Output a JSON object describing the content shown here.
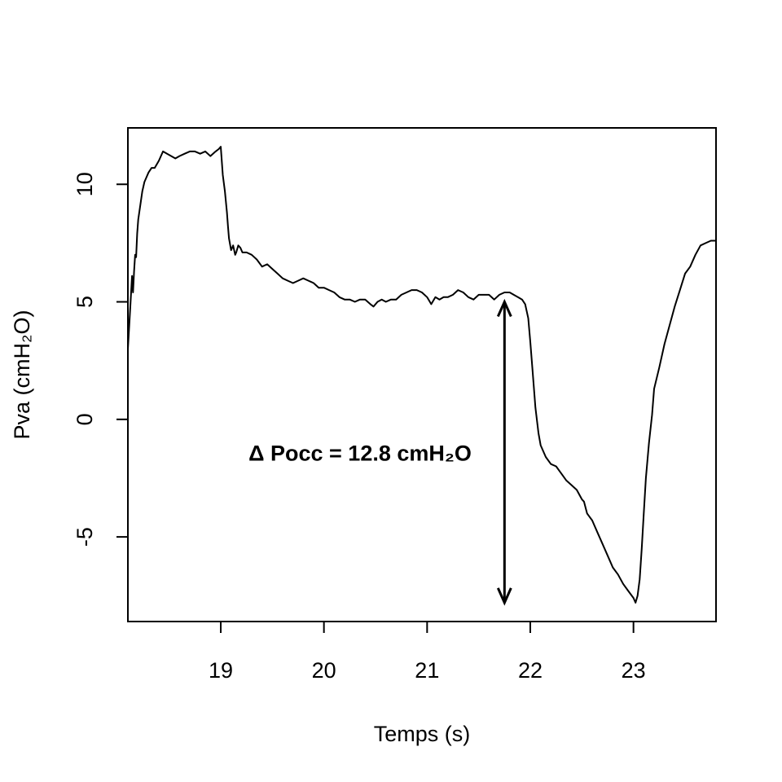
{
  "chart_data": {
    "type": "line",
    "title": "",
    "xlabel": "Temps (s)",
    "ylabel": "Pva (cmH₂O)",
    "xlim": [
      18.1,
      23.8
    ],
    "ylim": [
      -8.6,
      12.4
    ],
    "xticks": [
      19,
      20,
      21,
      22,
      23
    ],
    "xtick_labels": [
      "19",
      "20",
      "21",
      "22",
      "23"
    ],
    "yticks": [
      -5,
      0,
      5,
      10
    ],
    "ytick_labels": [
      "-5",
      "0",
      "5",
      "10"
    ],
    "grid": false,
    "legend": "none",
    "line_color": "#000000",
    "series": [
      {
        "x": [
          18.1,
          18.12,
          18.14,
          18.15,
          18.16,
          18.17,
          18.18,
          18.19,
          18.2,
          18.22,
          18.24,
          18.26,
          18.28,
          18.3,
          18.33,
          18.36,
          18.4,
          18.44,
          18.48,
          18.52,
          18.56,
          18.6,
          18.65,
          18.7,
          18.75,
          18.8,
          18.85,
          18.9,
          18.95,
          18.98,
          19.0,
          19.02,
          19.04,
          19.06,
          19.07,
          19.08,
          19.1,
          19.12,
          19.14,
          19.15,
          19.17,
          19.19,
          19.21,
          19.25,
          19.3,
          19.35,
          19.4,
          19.45,
          19.5,
          19.55,
          19.6,
          19.65,
          19.7,
          19.75,
          19.8,
          19.85,
          19.9,
          19.95,
          20.0,
          20.05,
          20.1,
          20.15,
          20.2,
          20.25,
          20.3,
          20.35,
          20.4,
          20.45,
          20.48,
          20.52,
          20.56,
          20.6,
          20.65,
          20.7,
          20.75,
          20.8,
          20.85,
          20.9,
          20.95,
          21.0,
          21.04,
          21.08,
          21.12,
          21.16,
          21.2,
          21.25,
          21.3,
          21.35,
          21.4,
          21.45,
          21.5,
          21.55,
          21.6,
          21.65,
          21.7,
          21.75,
          21.8,
          21.84,
          21.88,
          21.92,
          21.95,
          21.98,
          22.0,
          22.02,
          22.05,
          22.08,
          22.1,
          22.15,
          22.2,
          22.25,
          22.3,
          22.35,
          22.4,
          22.45,
          22.5,
          22.52,
          22.55,
          22.6,
          22.65,
          22.7,
          22.75,
          22.8,
          22.85,
          22.9,
          22.95,
          23.0,
          23.02,
          23.04,
          23.06,
          23.08,
          23.1,
          23.12,
          23.15,
          23.18,
          23.2,
          23.25,
          23.3,
          23.35,
          23.4,
          23.45,
          23.5,
          23.55,
          23.6,
          23.65,
          23.7,
          23.75,
          23.8
        ],
        "y": [
          3.0,
          4.5,
          6.1,
          5.4,
          6.3,
          7.0,
          6.9,
          7.9,
          8.5,
          9.1,
          9.7,
          10.1,
          10.3,
          10.5,
          10.7,
          10.7,
          11.0,
          11.4,
          11.3,
          11.2,
          11.1,
          11.2,
          11.3,
          11.4,
          11.4,
          11.3,
          11.4,
          11.2,
          11.4,
          11.5,
          11.6,
          10.4,
          9.7,
          8.8,
          8.2,
          7.7,
          7.2,
          7.4,
          7.0,
          7.1,
          7.4,
          7.3,
          7.1,
          7.1,
          7.0,
          6.8,
          6.5,
          6.6,
          6.4,
          6.2,
          6.0,
          5.9,
          5.8,
          5.9,
          6.0,
          5.9,
          5.8,
          5.6,
          5.6,
          5.5,
          5.4,
          5.2,
          5.1,
          5.1,
          5.0,
          5.1,
          5.1,
          4.9,
          4.8,
          5.0,
          5.1,
          5.0,
          5.1,
          5.1,
          5.3,
          5.4,
          5.5,
          5.5,
          5.4,
          5.2,
          4.9,
          5.2,
          5.1,
          5.2,
          5.2,
          5.3,
          5.5,
          5.4,
          5.2,
          5.1,
          5.3,
          5.3,
          5.3,
          5.1,
          5.3,
          5.4,
          5.4,
          5.3,
          5.2,
          5.1,
          4.9,
          4.3,
          3.3,
          2.2,
          0.5,
          -0.6,
          -1.1,
          -1.6,
          -1.9,
          -2.0,
          -2.3,
          -2.6,
          -2.8,
          -3.0,
          -3.4,
          -3.5,
          -4.0,
          -4.3,
          -4.8,
          -5.3,
          -5.8,
          -6.3,
          -6.6,
          -7.0,
          -7.3,
          -7.6,
          -7.8,
          -7.5,
          -6.8,
          -5.5,
          -4.0,
          -2.5,
          -1.0,
          0.2,
          1.3,
          2.2,
          3.2,
          4.0,
          4.8,
          5.5,
          6.2,
          6.5,
          7.0,
          7.4,
          7.5,
          7.6,
          7.6
        ]
      }
    ],
    "annotations": [
      {
        "text": "Δ Pocc = 12.8 cmH₂O",
        "x": 20.35,
        "y": -1.45
      }
    ],
    "arrow": {
      "x": 21.75,
      "y_start": 5.0,
      "y_end": -7.8,
      "double_headed": true
    }
  }
}
